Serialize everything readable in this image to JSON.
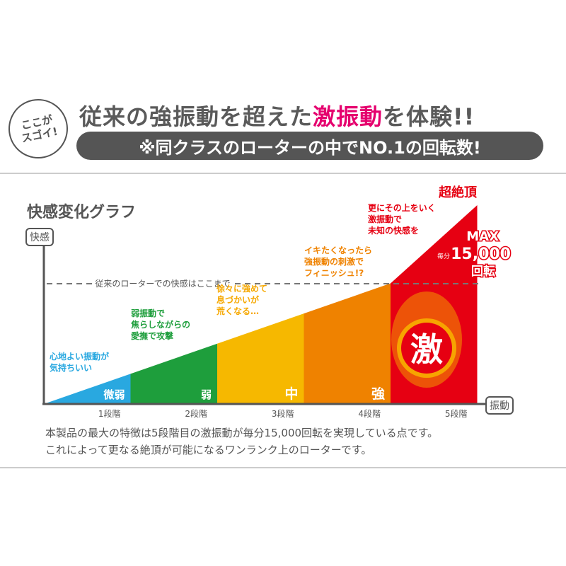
{
  "badge": {
    "line1": "ここが",
    "line2": "スゴイ!"
  },
  "headline": {
    "part1": "従来の強振動を超えた",
    "highlight": "激振動",
    "part2": "を体験!!"
  },
  "subheadline": "※同クラスのローターの中でNO.1の回転数!",
  "chart_data": {
    "type": "area",
    "title": "快感変化グラフ",
    "ylabel": "快感",
    "xlabel": "振動",
    "categories": [
      "1段階",
      "2段階",
      "3段階",
      "4段階",
      "5段階"
    ],
    "stage_names": [
      "微弱",
      "弱",
      "中",
      "強",
      "激"
    ],
    "colors": [
      "#29a8e0",
      "#1e9e3c",
      "#f6b800",
      "#ef8200",
      "#e60012"
    ],
    "threshold_label": "従来のローターでの快感はここまで",
    "top_label": "超絶頂",
    "max_label": {
      "line1": "MAX",
      "prefix": "毎分",
      "value": "15,000",
      "line3": "回転"
    },
    "notes": [
      {
        "lines": [
          "心地よい振動が",
          "気持ちいい"
        ],
        "color": "#29a8e0"
      },
      {
        "lines": [
          "弱振動で",
          "焦らしながらの",
          "愛撫で攻撃"
        ],
        "color": "#1e9e3c"
      },
      {
        "lines": [
          "徐々に強めて",
          "息づかいが",
          "荒くなる…"
        ],
        "color": "#f6a800"
      },
      {
        "lines": [
          "イキたくなったら",
          "強振動の刺激で",
          "フィニッシュ!?"
        ],
        "color": "#ef8200"
      },
      {
        "lines": [
          "更にその上をいく",
          "激振動で",
          "未知の快感を"
        ],
        "color": "#e60012"
      }
    ]
  },
  "description": {
    "line1": "本製品の最大の特徴は5段階目の激振動が毎分15,000回転を実現している点です。",
    "line2": "これによって更なる絶頂が可能になるワンランク上のローターです。"
  }
}
